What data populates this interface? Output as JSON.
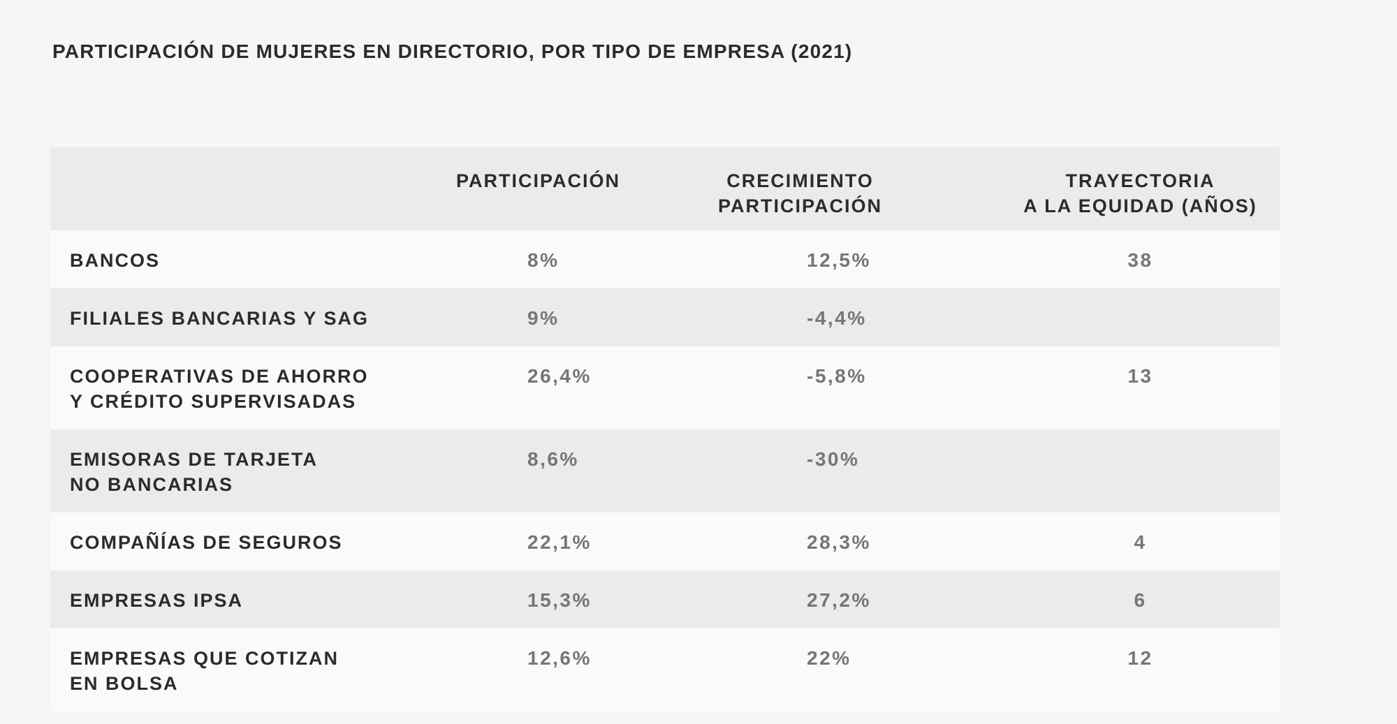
{
  "page": {
    "background": "#f6f6f6",
    "title": "PARTICIPACIÓN DE MUJERES EN DIRECTORIO, POR TIPO DE EMPRESA (2021)"
  },
  "table": {
    "header_bg": "#ebebeb",
    "stripe_bg": "#ebebeb",
    "light_row_bg": "#fafafa",
    "label_color": "#2b2b2b",
    "value_color": "#767676",
    "columns": [
      {
        "label": ""
      },
      {
        "label": "PARTICIPACIÓN"
      },
      {
        "label": "CRECIMIENTO\nPARTICIPACIÓN"
      },
      {
        "label": "TRAYECTORIA\nA LA EQUIDAD (AÑOS)"
      }
    ],
    "rows": [
      {
        "label": "BANCOS",
        "participacion": "8%",
        "crecimiento": "12,5%",
        "trayectoria": "38"
      },
      {
        "label": "FILIALES BANCARIAS Y SAG",
        "participacion": "9%",
        "crecimiento": "-4,4%",
        "trayectoria": ""
      },
      {
        "label": "COOPERATIVAS DE AHORRO\nY CRÉDITO SUPERVISADAS",
        "participacion": "26,4%",
        "crecimiento": "-5,8%",
        "trayectoria": "13"
      },
      {
        "label": "EMISORAS DE TARJETA\nNO BANCARIAS",
        "participacion": "8,6%",
        "crecimiento": "-30%",
        "trayectoria": ""
      },
      {
        "label": "COMPAÑÍAS DE SEGUROS",
        "participacion": "22,1%",
        "crecimiento": "28,3%",
        "trayectoria": "4"
      },
      {
        "label": "EMPRESAS IPSA",
        "participacion": "15,3%",
        "crecimiento": "27,2%",
        "trayectoria": "6"
      },
      {
        "label": "EMPRESAS QUE COTIZAN\nEN BOLSA",
        "participacion": "12,6%",
        "crecimiento": "22%",
        "trayectoria": "12"
      }
    ]
  },
  "chart_data": {
    "type": "table",
    "title": "PARTICIPACIÓN DE MUJERES EN DIRECTORIO, POR TIPO DE EMPRESA (2021)",
    "categories": [
      "BANCOS",
      "FILIALES BANCARIAS Y SAG",
      "COOPERATIVAS DE AHORRO Y CRÉDITO SUPERVISADAS",
      "EMISORAS DE TARJETA NO BANCARIAS",
      "COMPAÑÍAS DE SEGUROS",
      "EMPRESAS IPSA",
      "EMPRESAS QUE COTIZAN EN BOLSA"
    ],
    "series": [
      {
        "name": "PARTICIPACIÓN",
        "values": [
          "8%",
          "9%",
          "26,4%",
          "8,6%",
          "22,1%",
          "15,3%",
          "12,6%"
        ],
        "numeric": [
          8,
          9,
          26.4,
          8.6,
          22.1,
          15.3,
          12.6
        ]
      },
      {
        "name": "CRECIMIENTO PARTICIPACIÓN",
        "values": [
          "12,5%",
          "-4,4%",
          "-5,8%",
          "-30%",
          "28,3%",
          "27,2%",
          "22%"
        ],
        "numeric": [
          12.5,
          -4.4,
          -5.8,
          -30,
          28.3,
          27.2,
          22
        ]
      },
      {
        "name": "TRAYECTORIA A LA EQUIDAD (AÑOS)",
        "values": [
          "38",
          "",
          "13",
          "",
          "4",
          "6",
          "12"
        ],
        "numeric": [
          38,
          null,
          13,
          null,
          4,
          6,
          12
        ]
      }
    ],
    "layout": {
      "striped": true,
      "grid": false,
      "header_position": "top"
    }
  }
}
